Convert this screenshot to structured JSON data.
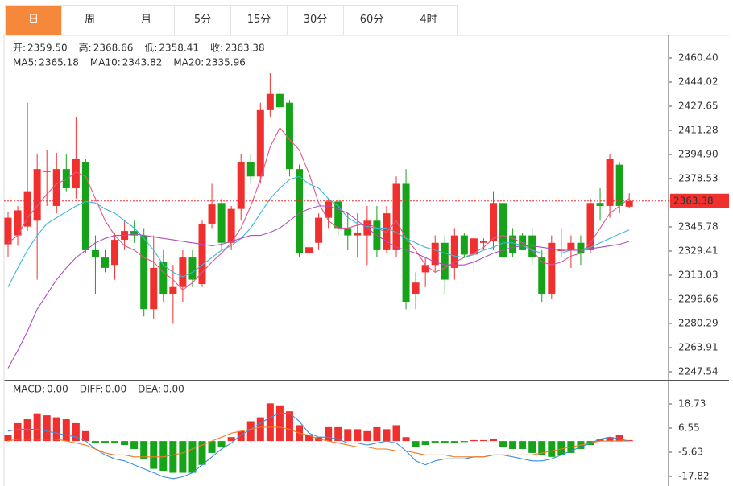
{
  "tabs": [
    "日",
    "周",
    "月",
    "5分",
    "15分",
    "30分",
    "60分",
    "4时"
  ],
  "chart_data": [
    {
      "type": "candlestick",
      "legend": [
        {
          "label": "开:",
          "value": "2359.50"
        },
        {
          "label": "高:",
          "value": "2368.66"
        },
        {
          "label": "低:",
          "value": "2358.41"
        },
        {
          "label": "收:",
          "value": "2363.38"
        }
      ],
      "up_color": "#f0302f",
      "down_color": "#16a31a",
      "legend_value_color": "#e8312f",
      "candles": [
        [
          2334,
          2356,
          2325,
          2352
        ],
        [
          2340,
          2360,
          2333,
          2357
        ],
        [
          2346,
          2430,
          2343,
          2370
        ],
        [
          2350,
          2395,
          2310,
          2385
        ],
        [
          2383,
          2398,
          2360,
          2384
        ],
        [
          2360,
          2396,
          2355,
          2385
        ],
        [
          2385,
          2395,
          2370,
          2372
        ],
        [
          2372,
          2420,
          2365,
          2392
        ],
        [
          2390,
          2392,
          2328,
          2330
        ],
        [
          2330,
          2340,
          2300,
          2325
        ],
        [
          2325,
          2330,
          2315,
          2318
        ],
        [
          2320,
          2342,
          2310,
          2337
        ],
        [
          2337,
          2350,
          2330,
          2343
        ],
        [
          2343,
          2350,
          2335,
          2340
        ],
        [
          2340,
          2345,
          2285,
          2290
        ],
        [
          2290,
          2340,
          2283,
          2318
        ],
        [
          2322,
          2330,
          2295,
          2300
        ],
        [
          2300,
          2320,
          2280,
          2305
        ],
        [
          2305,
          2330,
          2295,
          2325
        ],
        [
          2325,
          2330,
          2305,
          2310
        ],
        [
          2307,
          2350,
          2305,
          2348
        ],
        [
          2348,
          2375,
          2345,
          2361
        ],
        [
          2362,
          2365,
          2330,
          2335
        ],
        [
          2335,
          2360,
          2330,
          2358
        ],
        [
          2358,
          2395,
          2350,
          2390
        ],
        [
          2390,
          2395,
          2375,
          2380
        ],
        [
          2380,
          2430,
          2375,
          2425
        ],
        [
          2425,
          2450,
          2420,
          2436
        ],
        [
          2436,
          2440,
          2425,
          2427
        ],
        [
          2430,
          2432,
          2380,
          2385
        ],
        [
          2385,
          2388,
          2325,
          2328
        ],
        [
          2328,
          2340,
          2325,
          2332
        ],
        [
          2335,
          2355,
          2330,
          2352
        ],
        [
          2352,
          2365,
          2345,
          2363
        ],
        [
          2363,
          2365,
          2340,
          2345
        ],
        [
          2345,
          2355,
          2330,
          2340
        ],
        [
          2340,
          2355,
          2325,
          2342
        ],
        [
          2340,
          2360,
          2320,
          2350
        ],
        [
          2350,
          2360,
          2325,
          2330
        ],
        [
          2330,
          2360,
          2328,
          2355
        ],
        [
          2330,
          2380,
          2325,
          2375
        ],
        [
          2375,
          2385,
          2290,
          2295
        ],
        [
          2300,
          2315,
          2290,
          2308
        ],
        [
          2315,
          2325,
          2305,
          2320
        ],
        [
          2320,
          2340,
          2315,
          2335
        ],
        [
          2335,
          2340,
          2300,
          2310
        ],
        [
          2318,
          2345,
          2310,
          2340
        ],
        [
          2340,
          2342,
          2325,
          2327
        ],
        [
          2327,
          2340,
          2315,
          2338
        ],
        [
          2335,
          2338,
          2330,
          2336
        ],
        [
          2336,
          2370,
          2330,
          2362
        ],
        [
          2362,
          2370,
          2322,
          2325
        ],
        [
          2340,
          2345,
          2325,
          2328
        ],
        [
          2340,
          2342,
          2330,
          2330
        ],
        [
          2340,
          2345,
          2320,
          2325
        ],
        [
          2325,
          2330,
          2295,
          2300
        ],
        [
          2300,
          2340,
          2297,
          2335
        ],
        [
          2330,
          2345,
          2325,
          2330
        ],
        [
          2330,
          2340,
          2318,
          2335
        ],
        [
          2335,
          2340,
          2320,
          2328
        ],
        [
          2330,
          2365,
          2328,
          2362
        ],
        [
          2362,
          2372,
          2350,
          2360
        ],
        [
          2360,
          2395,
          2352,
          2392
        ],
        [
          2388,
          2390,
          2355,
          2360
        ],
        [
          2359.5,
          2368.66,
          2358.41,
          2363.38
        ]
      ],
      "series": [
        {
          "name": "MA5:",
          "value_label": "2365.18",
          "color": "#e0588b",
          "values": [
            2335,
            2340,
            2352,
            2360,
            2368,
            2375,
            2378,
            2383,
            2380,
            2365,
            2350,
            2340,
            2333,
            2330,
            2325,
            2322,
            2315,
            2310,
            2303,
            2308,
            2315,
            2322,
            2328,
            2335,
            2345,
            2360,
            2378,
            2400,
            2413,
            2405,
            2398,
            2382,
            2362,
            2350,
            2345,
            2345,
            2347,
            2348,
            2345,
            2342,
            2350,
            2338,
            2330,
            2320,
            2315,
            2318,
            2322,
            2325,
            2328,
            2332,
            2338,
            2340,
            2338,
            2335,
            2330,
            2322,
            2320,
            2322,
            2326,
            2328,
            2335,
            2345,
            2355,
            2360,
            2365.18
          ]
        },
        {
          "name": "MA10:",
          "value_label": "2343.82",
          "color": "#3db7da",
          "values": [
            2305,
            2318,
            2330,
            2340,
            2348,
            2352,
            2356,
            2360,
            2363,
            2362,
            2358,
            2355,
            2350,
            2345,
            2338,
            2330,
            2320,
            2315,
            2312,
            2315,
            2320,
            2325,
            2330,
            2333,
            2338,
            2345,
            2355,
            2365,
            2372,
            2378,
            2380,
            2375,
            2372,
            2365,
            2360,
            2352,
            2348,
            2346,
            2345,
            2345,
            2342,
            2338,
            2335,
            2332,
            2330,
            2328,
            2326,
            2325,
            2327,
            2330,
            2332,
            2335,
            2335,
            2333,
            2330,
            2328,
            2328,
            2328,
            2330,
            2330,
            2332,
            2335,
            2338,
            2341,
            2343.82
          ]
        },
        {
          "name": "MA20:",
          "value_label": "2335.96",
          "color": "#b04dc2",
          "values": [
            2250,
            2262,
            2275,
            2290,
            2300,
            2310,
            2318,
            2325,
            2330,
            2335,
            2338,
            2340,
            2340,
            2341,
            2340,
            2339,
            2338,
            2337,
            2336,
            2335,
            2334,
            2333,
            2334,
            2336,
            2338,
            2340,
            2340,
            2342,
            2345,
            2350,
            2355,
            2358,
            2360,
            2360,
            2358,
            2355,
            2350,
            2345,
            2340,
            2336,
            2332,
            2330,
            2328,
            2325,
            2322,
            2320,
            2320,
            2320,
            2322,
            2325,
            2328,
            2330,
            2332,
            2333,
            2333,
            2332,
            2331,
            2330,
            2330,
            2330,
            2331,
            2332,
            2333,
            2334,
            2335.96
          ]
        }
      ],
      "last_price": 2363.38,
      "ylim": [
        2242.08,
        2469.68
      ],
      "yticks": [
        {
          "value": 2460.4,
          "label": "2460.40"
        },
        2444.02,
        2427.65,
        2411.28,
        {
          "value": 2394.9,
          "label": "2394.90"
        },
        2378.53,
        2345.78,
        2329.41,
        2313.03,
        2296.66,
        2280.29,
        2263.91,
        2247.54
      ]
    },
    {
      "type": "macd",
      "up_color": "#f0302f",
      "down_color": "#16a31a",
      "series": [
        {
          "name": "MACD:",
          "value_label": "0.00",
          "color": "#e8361c",
          "style": "bar",
          "values": [
            3,
            9,
            11,
            14,
            13,
            12,
            11,
            9,
            5,
            -1,
            -1,
            -1,
            -2,
            -4,
            -9,
            -14,
            -15,
            -16,
            -16,
            -16,
            -12,
            -6,
            -3,
            2,
            5,
            10,
            12,
            19,
            18,
            15,
            8,
            3,
            2,
            7,
            7,
            6,
            6,
            5,
            7,
            6,
            8,
            2,
            -3,
            -2,
            -1,
            -1,
            -1,
            -0.5,
            0.5,
            0.5,
            1,
            -3,
            -4,
            -4,
            -6,
            -7,
            -8,
            -7,
            -6,
            -4,
            -2,
            1,
            2,
            3,
            0.5
          ]
        },
        {
          "name": "DIFF:",
          "value_label": "0.00",
          "color": "#3a8ee6",
          "style": "line",
          "values": [
            5,
            6,
            6,
            6,
            5,
            4,
            3,
            2,
            0,
            -4,
            -7,
            -9,
            -10,
            -12,
            -14,
            -16,
            -18,
            -19,
            -18,
            -16,
            -12,
            -8,
            -4,
            -1,
            3,
            6,
            9,
            12,
            14,
            14,
            10,
            4,
            2,
            2,
            1,
            -1,
            -1,
            -2,
            -1,
            0,
            -1,
            -5,
            -10,
            -12,
            -10,
            -9,
            -9,
            -9,
            -8,
            -8,
            -7,
            -7,
            -8,
            -9,
            -10,
            -10,
            -9,
            -7,
            -5,
            -3,
            -1,
            1,
            2,
            1,
            0
          ]
        },
        {
          "name": "DEA:",
          "value_label": "0.00",
          "color": "#f27b20",
          "style": "line",
          "values": [
            0,
            1,
            1,
            1,
            1,
            1,
            0,
            -1,
            -2,
            -4,
            -6,
            -7,
            -7,
            -8,
            -8,
            -8,
            -8,
            -7,
            -6,
            -4,
            -2,
            0,
            2,
            4,
            5,
            6,
            7,
            7,
            7,
            6,
            4,
            3,
            1,
            0,
            -1,
            -2,
            -3,
            -3,
            -4,
            -4,
            -5,
            -5,
            -6,
            -7,
            -7,
            -7,
            -8,
            -8,
            -8,
            -8,
            -7,
            -7,
            -7,
            -7,
            -7,
            -6,
            -5,
            -4,
            -3,
            -2,
            -1,
            0,
            0,
            0,
            0
          ]
        }
      ],
      "ylim": [
        -22.68,
        30.5
      ],
      "yticks": [
        18.73,
        6.55,
        -5.63,
        -17.82
      ]
    }
  ]
}
